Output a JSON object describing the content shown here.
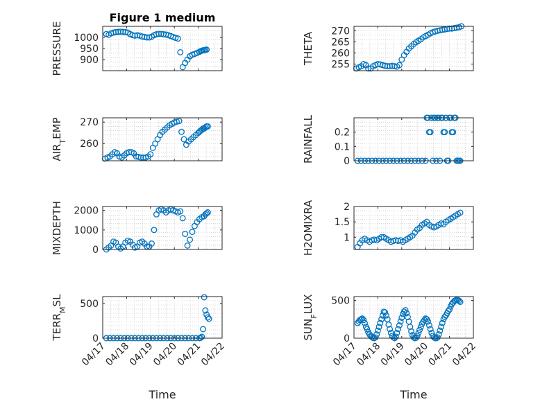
{
  "colors": {
    "series": "#0072BD",
    "axis": "#262626",
    "grid": "#bdbdbd"
  },
  "chart_data": [
    {
      "type": "scatter",
      "id": "pressure",
      "title": "Figure 1 medium",
      "ylabel": "PRESSURE",
      "xlabel": "",
      "xlim": [
        0,
        5
      ],
      "ylim": [
        850,
        1050
      ],
      "yticks": [
        900,
        950,
        1000
      ],
      "yticklabels": [
        "900",
        "950",
        "1000"
      ],
      "xticks": [
        0,
        1,
        2,
        3,
        4,
        5
      ],
      "xticklabels": [],
      "x": [
        0.15,
        0.25,
        0.35,
        0.45,
        0.55,
        0.65,
        0.75,
        0.85,
        0.95,
        1.05,
        1.15,
        1.25,
        1.35,
        1.45,
        1.55,
        1.65,
        1.75,
        1.85,
        1.95,
        2.05,
        2.15,
        2.25,
        2.35,
        2.45,
        2.55,
        2.65,
        2.75,
        2.85,
        2.95,
        3.05,
        3.15,
        3.25,
        3.35,
        3.45,
        3.55,
        3.65,
        3.75,
        3.85,
        3.95,
        4.05,
        4.1,
        4.15,
        4.2,
        4.25,
        4.3,
        4.35
      ],
      "y": [
        1015,
        1012,
        1018,
        1022,
        1024,
        1025,
        1026,
        1025,
        1024,
        1022,
        1015,
        1010,
        1008,
        1010,
        1008,
        1004,
        1002,
        1000,
        1000,
        1003,
        1010,
        1014,
        1016,
        1016,
        1014,
        1013,
        1010,
        1006,
        1002,
        998,
        995,
        933,
        866,
        885,
        900,
        915,
        922,
        926,
        930,
        935,
        938,
        940,
        942,
        942,
        944,
        945
      ]
    },
    {
      "type": "scatter",
      "id": "theta",
      "ylabel": "THETA",
      "xlabel": "",
      "xlim": [
        0,
        5
      ],
      "ylim": [
        252,
        272
      ],
      "yticks": [
        255,
        260,
        265,
        270
      ],
      "yticklabels": [
        "255",
        "260",
        "265",
        "270"
      ],
      "xticks": [
        0,
        1,
        2,
        3,
        4,
        5
      ],
      "xticklabels": [],
      "x": [
        0.1,
        0.2,
        0.3,
        0.4,
        0.5,
        0.6,
        0.7,
        0.8,
        0.9,
        1.0,
        1.1,
        1.2,
        1.3,
        1.4,
        1.5,
        1.6,
        1.7,
        1.8,
        1.9,
        2.0,
        2.1,
        2.2,
        2.3,
        2.4,
        2.5,
        2.6,
        2.7,
        2.8,
        2.9,
        3.0,
        3.1,
        3.2,
        3.3,
        3.4,
        3.5,
        3.6,
        3.7,
        3.8,
        3.9,
        4.0,
        4.1,
        4.2,
        4.3,
        4.4,
        4.5
      ],
      "y": [
        253,
        253.5,
        254,
        255,
        254.5,
        253,
        253,
        254,
        254.5,
        255,
        254.8,
        254.5,
        254.2,
        254,
        254,
        254.2,
        254,
        253.8,
        254.5,
        257,
        259,
        260.5,
        262,
        263,
        264,
        264.8,
        265.5,
        266.2,
        267,
        267.6,
        268.2,
        268.8,
        269.3,
        269.7,
        270,
        270.2,
        270.4,
        270.6,
        270.8,
        271,
        271,
        271.2,
        271.4,
        271.6,
        272
      ]
    },
    {
      "type": "scatter",
      "id": "air_temp",
      "ylabel": "AIR_TEMP",
      "ylabel_main": "AIR",
      "ylabel_sub": "T",
      "ylabel_rest": "EMP",
      "xlabel": "",
      "xlim": [
        0,
        5
      ],
      "ylim": [
        252,
        272
      ],
      "yticks": [
        260,
        270
      ],
      "yticklabels": [
        "260",
        "270"
      ],
      "xticks": [
        0,
        1,
        2,
        3,
        4,
        5
      ],
      "xticklabels": [],
      "x": [
        0.1,
        0.2,
        0.3,
        0.4,
        0.5,
        0.6,
        0.7,
        0.8,
        0.9,
        1.0,
        1.1,
        1.2,
        1.3,
        1.4,
        1.5,
        1.6,
        1.7,
        1.8,
        1.9,
        2.0,
        2.1,
        2.2,
        2.3,
        2.4,
        2.5,
        2.6,
        2.7,
        2.8,
        2.9,
        3.0,
        3.1,
        3.2,
        3.3,
        3.4,
        3.5,
        3.6,
        3.7,
        3.8,
        3.9,
        4.0,
        4.05,
        4.1,
        4.15,
        4.2,
        4.25,
        4.3,
        4.35,
        4.4
      ],
      "y": [
        253,
        253.5,
        254,
        255,
        256,
        255.5,
        254,
        253.5,
        254.5,
        255.5,
        256,
        256,
        255.5,
        254,
        253.8,
        253.5,
        253.5,
        253.5,
        254,
        255,
        258,
        260,
        262,
        264,
        265.5,
        266.5,
        267.5,
        268.5,
        269.2,
        269.8,
        270.2,
        270.5,
        265.5,
        262,
        259.5,
        261,
        262,
        263,
        264,
        265,
        265.5,
        266,
        266.5,
        267,
        267,
        267.5,
        268,
        268
      ]
    },
    {
      "type": "scatter",
      "id": "rainfall",
      "ylabel": "RAINFALL",
      "xlabel": "",
      "xlim": [
        0,
        5
      ],
      "ylim": [
        0,
        0.3
      ],
      "yticks": [
        0,
        0.1,
        0.2
      ],
      "yticklabels": [
        "0",
        "0.1",
        "0.2"
      ],
      "xticks": [
        0,
        1,
        2,
        3,
        4,
        5
      ],
      "xticklabels": [],
      "x": [
        0.15,
        0.3,
        0.45,
        0.6,
        0.75,
        0.9,
        1.05,
        1.2,
        1.35,
        1.5,
        1.65,
        1.8,
        1.95,
        2.1,
        2.25,
        2.4,
        2.55,
        2.7,
        2.85,
        3.0,
        3.05,
        3.1,
        3.15,
        3.2,
        3.25,
        3.3,
        3.35,
        3.4,
        3.45,
        3.5,
        3.55,
        3.6,
        3.65,
        3.7,
        3.75,
        3.8,
        3.85,
        3.9,
        3.95,
        4.0,
        4.05,
        4.1,
        4.15,
        4.2,
        4.25,
        4.3,
        4.35,
        4.4,
        4.45
      ],
      "y": [
        0,
        0,
        0,
        0,
        0,
        0,
        0,
        0,
        0,
        0,
        0,
        0,
        0,
        0,
        0,
        0,
        0,
        0,
        0,
        0,
        0.3,
        0.3,
        0.2,
        0.2,
        0.3,
        0,
        0.3,
        0.3,
        0,
        0.3,
        0.3,
        0,
        0.3,
        0.3,
        0.2,
        0.2,
        0.3,
        0,
        0,
        0.3,
        0.3,
        0.2,
        0.2,
        0.3,
        0.3,
        0,
        0,
        0,
        0
      ]
    },
    {
      "type": "scatter",
      "id": "mixdepth",
      "ylabel": "MIXDEPTH",
      "xlabel": "",
      "xlim": [
        0,
        5
      ],
      "ylim": [
        0,
        2200
      ],
      "yticks": [
        0,
        1000,
        2000
      ],
      "yticklabels": [
        "0",
        "1000",
        "2000"
      ],
      "xticks": [
        0,
        1,
        2,
        3,
        4,
        5
      ],
      "xticklabels": [],
      "x": [
        0.15,
        0.25,
        0.35,
        0.45,
        0.55,
        0.65,
        0.75,
        0.85,
        0.95,
        1.05,
        1.15,
        1.25,
        1.35,
        1.45,
        1.55,
        1.65,
        1.75,
        1.85,
        1.95,
        2.05,
        2.15,
        2.25,
        2.35,
        2.45,
        2.55,
        2.65,
        2.75,
        2.85,
        2.95,
        3.05,
        3.15,
        3.25,
        3.35,
        3.45,
        3.55,
        3.65,
        3.75,
        3.85,
        3.95,
        4.05,
        4.15,
        4.25,
        4.3,
        4.35,
        4.4
      ],
      "y": [
        0,
        100,
        200,
        400,
        350,
        150,
        50,
        150,
        350,
        450,
        400,
        250,
        100,
        150,
        350,
        400,
        300,
        150,
        150,
        300,
        1000,
        1800,
        2000,
        2050,
        2000,
        1900,
        2000,
        2050,
        2000,
        1950,
        1900,
        1950,
        1600,
        800,
        200,
        500,
        900,
        1200,
        1400,
        1550,
        1650,
        1700,
        1800,
        1850,
        1900
      ]
    },
    {
      "type": "scatter",
      "id": "h2omixra",
      "ylabel": "H2OMIXRA",
      "xlabel": "",
      "xlim": [
        0,
        5
      ],
      "ylim": [
        0.6,
        2
      ],
      "yticks": [
        1,
        1.5,
        2
      ],
      "yticklabels": [
        "1",
        "1.5",
        "2"
      ],
      "xticks": [
        0,
        1,
        2,
        3,
        4,
        5
      ],
      "xticklabels": [],
      "x": [
        0.15,
        0.25,
        0.35,
        0.45,
        0.55,
        0.65,
        0.75,
        0.85,
        0.95,
        1.05,
        1.15,
        1.25,
        1.35,
        1.45,
        1.55,
        1.65,
        1.75,
        1.85,
        1.95,
        2.05,
        2.15,
        2.25,
        2.35,
        2.45,
        2.55,
        2.65,
        2.75,
        2.85,
        2.95,
        3.05,
        3.15,
        3.25,
        3.35,
        3.45,
        3.55,
        3.65,
        3.75,
        3.85,
        3.95,
        4.05,
        4.15,
        4.25,
        4.35,
        4.45
      ],
      "y": [
        0.68,
        0.8,
        0.9,
        0.95,
        0.9,
        0.85,
        0.9,
        0.92,
        0.9,
        0.95,
        1.0,
        1.0,
        0.95,
        0.9,
        0.85,
        0.88,
        0.9,
        0.88,
        0.9,
        0.85,
        0.9,
        0.95,
        1.0,
        1.05,
        1.15,
        1.25,
        1.3,
        1.4,
        1.45,
        1.5,
        1.4,
        1.35,
        1.32,
        1.35,
        1.4,
        1.45,
        1.42,
        1.5,
        1.55,
        1.6,
        1.65,
        1.7,
        1.75,
        1.8
      ]
    },
    {
      "type": "scatter",
      "id": "terr_msl",
      "ylabel": "TERR_MSL",
      "ylabel_main": "TERR",
      "ylabel_sub": "M",
      "ylabel_rest": "SL",
      "xlabel": "Time",
      "xlim": [
        0,
        5
      ],
      "ylim": [
        0,
        600
      ],
      "yticks": [
        0,
        500
      ],
      "yticklabels": [
        "0",
        "500"
      ],
      "xticks": [
        0,
        1,
        2,
        3,
        4,
        5
      ],
      "xticklabels": [
        "04/17",
        "04/18",
        "04/19",
        "04/20",
        "04/21",
        "04/22"
      ],
      "x": [
        0.15,
        0.3,
        0.45,
        0.6,
        0.75,
        0.9,
        1.05,
        1.2,
        1.35,
        1.5,
        1.65,
        1.8,
        1.95,
        2.1,
        2.25,
        2.4,
        2.55,
        2.7,
        2.85,
        3.0,
        3.15,
        3.3,
        3.45,
        3.6,
        3.75,
        3.9,
        4.05,
        4.1,
        4.15,
        4.2,
        4.25,
        4.3,
        4.35,
        4.4,
        4.45
      ],
      "y": [
        0,
        0,
        0,
        0,
        0,
        0,
        0,
        0,
        0,
        0,
        0,
        0,
        0,
        0,
        0,
        0,
        0,
        0,
        0,
        0,
        0,
        0,
        0,
        0,
        0,
        0,
        0,
        5,
        20,
        130,
        590,
        400,
        340,
        300,
        280
      ]
    },
    {
      "type": "scatter",
      "id": "sun_flux",
      "ylabel": "SUN_FLUX",
      "ylabel_main": "SUN",
      "ylabel_sub": "F",
      "ylabel_rest": "LUX",
      "xlabel": "Time",
      "xlim": [
        0,
        5
      ],
      "ylim": [
        0,
        550
      ],
      "yticks": [
        0,
        500
      ],
      "yticklabels": [
        "0",
        "500"
      ],
      "xticks": [
        0,
        1,
        2,
        3,
        4,
        5
      ],
      "xticklabels": [
        "04/17",
        "04/18",
        "04/19",
        "04/20",
        "04/21",
        "04/22"
      ],
      "x": [
        0.15,
        0.2,
        0.25,
        0.3,
        0.35,
        0.4,
        0.45,
        0.5,
        0.55,
        0.6,
        0.65,
        0.7,
        0.75,
        0.8,
        0.85,
        0.9,
        0.95,
        1.0,
        1.05,
        1.1,
        1.15,
        1.2,
        1.25,
        1.3,
        1.35,
        1.4,
        1.45,
        1.5,
        1.55,
        1.6,
        1.65,
        1.7,
        1.75,
        1.8,
        1.85,
        1.9,
        1.95,
        2.0,
        2.05,
        2.1,
        2.15,
        2.2,
        2.25,
        2.3,
        2.35,
        2.4,
        2.45,
        2.5,
        2.55,
        2.6,
        2.65,
        2.7,
        2.75,
        2.8,
        2.85,
        2.9,
        2.95,
        3.0,
        3.05,
        3.1,
        3.15,
        3.2,
        3.25,
        3.3,
        3.35,
        3.4,
        3.45,
        3.5,
        3.55,
        3.6,
        3.65,
        3.7,
        3.75,
        3.8,
        3.85,
        3.9,
        3.95,
        4.0,
        4.05,
        4.1,
        4.15,
        4.2,
        4.25,
        4.3,
        4.35,
        4.4,
        4.45
      ],
      "y": [
        200,
        220,
        240,
        250,
        260,
        240,
        200,
        150,
        120,
        80,
        50,
        30,
        15,
        5,
        0,
        10,
        50,
        100,
        150,
        200,
        250,
        300,
        350,
        340,
        300,
        250,
        180,
        120,
        70,
        30,
        10,
        0,
        20,
        70,
        120,
        170,
        220,
        270,
        320,
        350,
        370,
        330,
        280,
        220,
        150,
        90,
        40,
        10,
        0,
        5,
        30,
        70,
        110,
        150,
        190,
        220,
        240,
        260,
        250,
        220,
        170,
        120,
        70,
        30,
        10,
        0,
        0,
        10,
        50,
        100,
        150,
        200,
        250,
        280,
        300,
        330,
        360,
        380,
        420,
        450,
        470,
        490,
        500,
        510,
        505,
        495,
        480
      ]
    }
  ]
}
